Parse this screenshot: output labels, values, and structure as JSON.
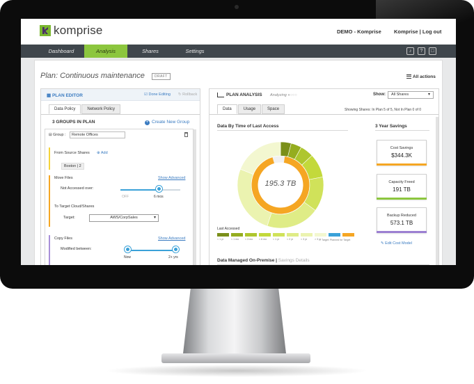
{
  "header": {
    "logo_text": "komprise",
    "demo_label": "DEMO - Komprise",
    "user_links": "Komprise | Log out"
  },
  "nav": {
    "tabs": [
      "Dashboard",
      "Analysis",
      "Shares",
      "Settings"
    ],
    "active_tab": "Analysis",
    "icons": [
      "bell-icon",
      "help-icon",
      "chat-icon"
    ],
    "icon_glyphs": [
      "♪",
      "?",
      "□"
    ]
  },
  "plan": {
    "title": "Plan: Continuous maintenance",
    "badge": "DRAFT",
    "all_actions": "All actions"
  },
  "editor": {
    "title": "PLAN EDITOR",
    "done_editing": "Done Editing",
    "rollback": "Rollback",
    "tabs": [
      "Data Policy",
      "Network Policy"
    ],
    "groups_title": "3 GROUPS IN PLAN",
    "create_group": "Create New Group",
    "group_label": "Group :",
    "group_name": "Remote Offices",
    "from_source": "From Source Shares",
    "add": "Add",
    "source_chip": "Boston | 2",
    "move_files": "Move Files",
    "show_advanced_1": "Show Advanced",
    "not_accessed": "Not Accessed over:",
    "slider1_ticks": [
      "OFF",
      "6 mos"
    ],
    "slider1_value_fraction": 0.65,
    "to_target": "To Target Cloud/Shares",
    "target_label": "Target:",
    "target_value": "AWS/CorpSales",
    "copy_files": "Copy Files",
    "show_advanced_2": "Show Advanced",
    "modified_between": "Modified between:",
    "slider2_ticks": [
      "Now",
      "2+ yrs"
    ]
  },
  "analysis": {
    "title": "PLAN ANALYSIS",
    "analyzing": "Analyzing",
    "show_label": "Show:",
    "show_value": "All Shares",
    "tabs": [
      "Data",
      "Usage",
      "Space"
    ],
    "showing": "Showing Shares: In Plan 5 of 5, Not In Plan 0 of 0",
    "chart_title": "Data By Time of Last Access",
    "total": "195.3 TB",
    "last_accessed": "Last Accessed",
    "target_note": "= Target: Planned for Target",
    "savings_title": "3 Year Savings",
    "cards": [
      {
        "title": "Cost Savings",
        "value": "$344.3K",
        "color": "#f5a623"
      },
      {
        "title": "Capacity Freed",
        "value": "191 TB",
        "color": "#8cc63e"
      },
      {
        "title": "Backup Reduced",
        "value": "573.1 TB",
        "color": "#9b7fd1"
      }
    ],
    "edit_cost": "Edit Cost Model",
    "managed_title": "Data Managed On-Premise",
    "managed_sub": "Savings Details"
  },
  "chart_data": {
    "type": "pie",
    "title": "Data By Time of Last Access",
    "center_label": "195.3 TB",
    "legend_title": "Last Accessed",
    "categories": [
      "< 1 yr",
      "< 1 mo",
      "< 3 mo",
      "< 6 mo",
      "< 1 yr",
      "< 2 yr",
      "< 3 yr",
      "> 3 yr",
      "Target",
      "Planned for Target"
    ],
    "colors": [
      "#7a8f1a",
      "#95ad1f",
      "#aec62e",
      "#c3d93b",
      "#d0e25a",
      "#dfec86",
      "#ebf3b0",
      "#f3f7d0",
      "#3aa1d8",
      "#f5a623"
    ],
    "outer_ring": [
      {
        "category": "< 1 yr",
        "value": 4,
        "color": "#7a8f1a"
      },
      {
        "category": "< 1 mo",
        "value": 4,
        "color": "#95ad1f"
      },
      {
        "category": "< 3 mo",
        "value": 5,
        "color": "#aec62e"
      },
      {
        "category": "< 6 mo",
        "value": 9,
        "color": "#c3d93b"
      },
      {
        "category": "< 1 yr",
        "value": 13,
        "color": "#d0e25a"
      },
      {
        "category": "< 2 yr",
        "value": 20,
        "color": "#dfec86"
      },
      {
        "category": "< 3 yr",
        "value": 26,
        "color": "#ebf3b0"
      },
      {
        "category": "> 3 yr",
        "value": 19,
        "color": "#f3f7d0"
      }
    ],
    "inner_ring": {
      "planned_fraction": 0.97,
      "color": "#f5a623"
    }
  }
}
